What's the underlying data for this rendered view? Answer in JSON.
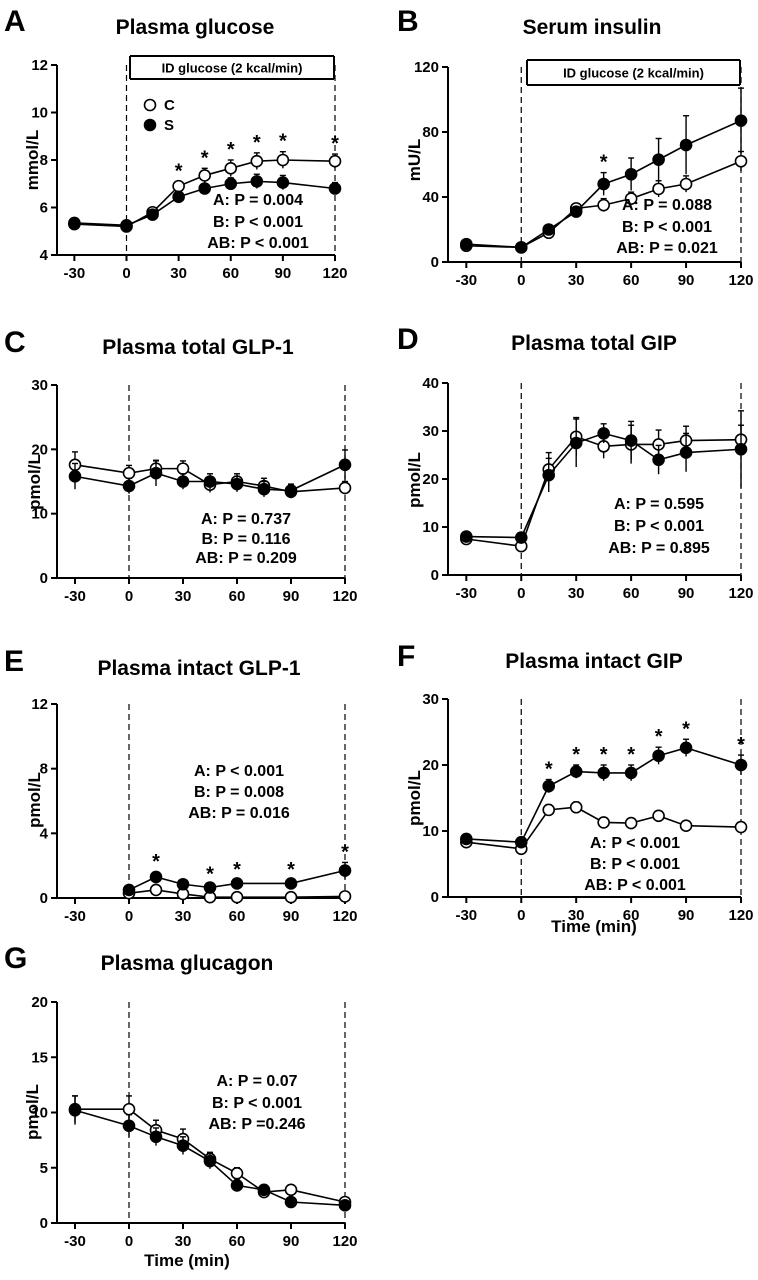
{
  "figure": {
    "legend": {
      "open_label": "C",
      "filled_label": "S"
    },
    "x_ticks": [
      "-30",
      "0",
      "30",
      "60",
      "90",
      "120"
    ]
  },
  "chart_data": [
    {
      "type": "line",
      "panel": "A",
      "title": "Plasma glucose",
      "xlabel": "",
      "ylabel": "mmol/L",
      "xlim": [
        -40,
        120
      ],
      "ylim": [
        4,
        12
      ],
      "y_ticks": [
        "4",
        "6",
        "8",
        "10",
        "12"
      ],
      "box_label": "ID glucose (2 kcal/min)",
      "stats": [
        "A: P = 0.004",
        "B: P < 0.001",
        "AB: P < 0.001"
      ],
      "series": [
        {
          "name": "C",
          "x": [
            -30,
            0,
            15,
            30,
            45,
            60,
            75,
            90,
            120
          ],
          "y": [
            5.3,
            5.2,
            5.8,
            6.9,
            7.35,
            7.65,
            7.95,
            8.0,
            7.95
          ],
          "err": [
            0.1,
            0.1,
            0.15,
            0.2,
            0.3,
            0.35,
            0.35,
            0.35,
            0.3
          ]
        },
        {
          "name": "S",
          "x": [
            -30,
            0,
            15,
            30,
            45,
            60,
            75,
            90,
            120
          ],
          "y": [
            5.35,
            5.25,
            5.7,
            6.45,
            6.8,
            7.0,
            7.1,
            7.05,
            6.8
          ],
          "err": [
            0.1,
            0.1,
            0.1,
            0.15,
            0.2,
            0.25,
            0.3,
            0.3,
            0.25
          ]
        }
      ],
      "stars": [
        {
          "x": 30,
          "text": "*"
        },
        {
          "x": 45,
          "text": "*"
        },
        {
          "x": 60,
          "text": "*"
        },
        {
          "x": 75,
          "text": "*"
        },
        {
          "x": 90,
          "text": "*"
        },
        {
          "x": 120,
          "text": "*"
        }
      ]
    },
    {
      "type": "line",
      "panel": "B",
      "title": "Serum insulin",
      "xlabel": "",
      "ylabel": "mU/L",
      "xlim": [
        -40,
        120
      ],
      "ylim": [
        0,
        120
      ],
      "y_ticks": [
        "0",
        "40",
        "80",
        "120"
      ],
      "box_label": "ID glucose (2 kcal/min)",
      "stats": [
        "A: P = 0.088",
        "B: P < 0.001",
        "AB: P = 0.021"
      ],
      "series": [
        {
          "name": "C",
          "x": [
            -30,
            0,
            15,
            30,
            45,
            60,
            75,
            90,
            120
          ],
          "y": [
            10,
            9,
            18,
            33,
            35,
            39,
            45,
            48,
            62
          ],
          "err": [
            1,
            1,
            2,
            3,
            4,
            4,
            5,
            5,
            6
          ]
        },
        {
          "name": "S",
          "x": [
            -30,
            0,
            15,
            30,
            45,
            60,
            75,
            90,
            120
          ],
          "y": [
            11,
            9,
            20,
            31,
            48,
            54,
            63,
            72,
            87
          ],
          "err": [
            1,
            1,
            2,
            3,
            7,
            10,
            13,
            18,
            20
          ]
        }
      ],
      "stars": [
        {
          "x": 45,
          "text": "*"
        }
      ]
    },
    {
      "type": "line",
      "panel": "C",
      "title": "Plasma total GLP-1",
      "xlabel": "",
      "ylabel": "pmol/L",
      "xlim": [
        -40,
        120
      ],
      "ylim": [
        0,
        30
      ],
      "y_ticks": [
        "0",
        "10",
        "20",
        "30"
      ],
      "stats": [
        "A: P = 0.737",
        "B: P = 0.116",
        "AB: P = 0.209"
      ],
      "series": [
        {
          "name": "C",
          "x": [
            -30,
            0,
            15,
            30,
            45,
            60,
            75,
            90,
            120
          ],
          "y": [
            17.6,
            16.3,
            17.0,
            17.0,
            14.5,
            15.0,
            14.3,
            13.4,
            14.0
          ],
          "err": [
            2,
            1.2,
            1.2,
            1.2,
            1.2,
            1.2,
            1.2,
            1.0,
            1.0
          ]
        },
        {
          "name": "S",
          "x": [
            -30,
            0,
            15,
            30,
            45,
            60,
            75,
            90,
            120
          ],
          "y": [
            15.8,
            14.3,
            16.3,
            15.0,
            15.0,
            14.6,
            13.8,
            13.6,
            17.6
          ],
          "err": [
            2,
            1.2,
            2,
            1.2,
            1.2,
            1.2,
            1.2,
            1.0,
            2.3
          ]
        }
      ],
      "stars": []
    },
    {
      "type": "line",
      "panel": "D",
      "title": "Plasma total GIP",
      "xlabel": "",
      "ylabel": "pmol/L",
      "xlim": [
        -40,
        120
      ],
      "ylim": [
        0,
        40
      ],
      "y_ticks": [
        "0",
        "10",
        "20",
        "30",
        "40"
      ],
      "stats": [
        "A: P = 0.595",
        "B: P < 0.001",
        "AB: P = 0.895"
      ],
      "series": [
        {
          "name": "C",
          "x": [
            -30,
            0,
            15,
            30,
            45,
            60,
            75,
            90,
            120
          ],
          "y": [
            7.5,
            6.0,
            22.0,
            28.8,
            26.8,
            27.2,
            27.2,
            28.0,
            28.2
          ],
          "err": [
            1,
            1,
            3.5,
            4,
            2.5,
            4,
            3,
            3,
            3
          ]
        },
        {
          "name": "S",
          "x": [
            -30,
            0,
            15,
            30,
            45,
            60,
            75,
            90,
            120
          ],
          "y": [
            8.0,
            7.8,
            20.8,
            27.5,
            29.5,
            28.0,
            24.0,
            25.5,
            26.2
          ],
          "err": [
            1,
            1,
            3.5,
            5,
            2,
            4,
            3,
            4,
            8
          ]
        }
      ],
      "stars": []
    },
    {
      "type": "line",
      "panel": "E",
      "title": "Plasma intact GLP-1",
      "xlabel": "",
      "ylabel": "pmol/L",
      "xlim": [
        -40,
        120
      ],
      "ylim": [
        0,
        12
      ],
      "y_ticks": [
        "0",
        "4",
        "8",
        "12"
      ],
      "stats": [
        "A: P < 0.001",
        "B: P = 0.008",
        "AB: P = 0.016"
      ],
      "series": [
        {
          "name": "C",
          "x": [
            0,
            15,
            30,
            45,
            60,
            90,
            120
          ],
          "y": [
            0.3,
            0.5,
            0.25,
            0.05,
            0.05,
            0.05,
            0.1
          ],
          "err": [
            0.1,
            0.15,
            0.1,
            0.05,
            0.05,
            0.05,
            0.1
          ]
        },
        {
          "name": "S",
          "x": [
            0,
            15,
            30,
            45,
            60,
            90,
            120
          ],
          "y": [
            0.5,
            1.3,
            0.85,
            0.65,
            0.9,
            0.9,
            1.7
          ],
          "err": [
            0.15,
            0.3,
            0.2,
            0.2,
            0.2,
            0.2,
            0.5
          ]
        }
      ],
      "stars": [
        {
          "x": 15,
          "text": "*"
        },
        {
          "x": 45,
          "text": "*"
        },
        {
          "x": 60,
          "text": "*"
        },
        {
          "x": 90,
          "text": "*"
        },
        {
          "x": 120,
          "text": "*"
        }
      ]
    },
    {
      "type": "line",
      "panel": "F",
      "title": "Plasma intact GIP",
      "xlabel": "Time (min)",
      "ylabel": "pmol/L",
      "xlim": [
        -40,
        120
      ],
      "ylim": [
        0,
        30
      ],
      "y_ticks": [
        "0",
        "10",
        "20",
        "30"
      ],
      "stats": [
        "A: P < 0.001",
        "B: P < 0.001",
        "AB: P < 0.001"
      ],
      "series": [
        {
          "name": "C",
          "x": [
            -30,
            0,
            15,
            30,
            45,
            60,
            75,
            90,
            120
          ],
          "y": [
            8.3,
            7.3,
            13.2,
            13.6,
            11.3,
            11.2,
            12.3,
            10.8,
            10.6
          ],
          "err": [
            0.5,
            0.6,
            0.8,
            0.8,
            0.6,
            0.6,
            0.7,
            0.6,
            0.6
          ]
        },
        {
          "name": "S",
          "x": [
            -30,
            0,
            15,
            30,
            45,
            60,
            75,
            90,
            120
          ],
          "y": [
            8.8,
            8.3,
            16.8,
            19.0,
            18.8,
            18.8,
            21.4,
            22.6,
            20.0
          ],
          "err": [
            0.5,
            0.6,
            1.0,
            1.0,
            1.2,
            1.2,
            1.3,
            1.3,
            1.5
          ]
        }
      ],
      "stars": [
        {
          "x": 15,
          "text": "*"
        },
        {
          "x": 30,
          "text": "*"
        },
        {
          "x": 45,
          "text": "*"
        },
        {
          "x": 60,
          "text": "*"
        },
        {
          "x": 75,
          "text": "*"
        },
        {
          "x": 90,
          "text": "*"
        },
        {
          "x": 120,
          "text": "*"
        }
      ]
    },
    {
      "type": "line",
      "panel": "G",
      "title": "Plasma glucagon",
      "xlabel": "Time (min)",
      "ylabel": "pmol/L",
      "xlim": [
        -40,
        120
      ],
      "ylim": [
        0,
        20
      ],
      "y_ticks": [
        "0",
        "5",
        "10",
        "15",
        "20"
      ],
      "stats": [
        "A: P = 0.07",
        "B: P < 0.001",
        "AB: P =0.246"
      ],
      "series": [
        {
          "name": "C",
          "x": [
            -30,
            0,
            15,
            30,
            45,
            60,
            75,
            90,
            120
          ],
          "y": [
            10.3,
            10.3,
            8.4,
            7.6,
            5.8,
            4.5,
            2.8,
            3.0,
            1.9
          ],
          "err": [
            1.2,
            1.2,
            0.9,
            0.9,
            0.6,
            0.5,
            0.3,
            0.3,
            0.3
          ]
        },
        {
          "name": "S",
          "x": [
            -30,
            0,
            15,
            30,
            45,
            60,
            75,
            90,
            120
          ],
          "y": [
            10.2,
            8.8,
            7.8,
            7.0,
            5.6,
            3.4,
            3.0,
            1.9,
            1.6
          ],
          "err": [
            1.3,
            1.0,
            0.8,
            0.8,
            0.7,
            0.5,
            0.4,
            0.3,
            0.3
          ]
        }
      ],
      "stars": []
    }
  ]
}
